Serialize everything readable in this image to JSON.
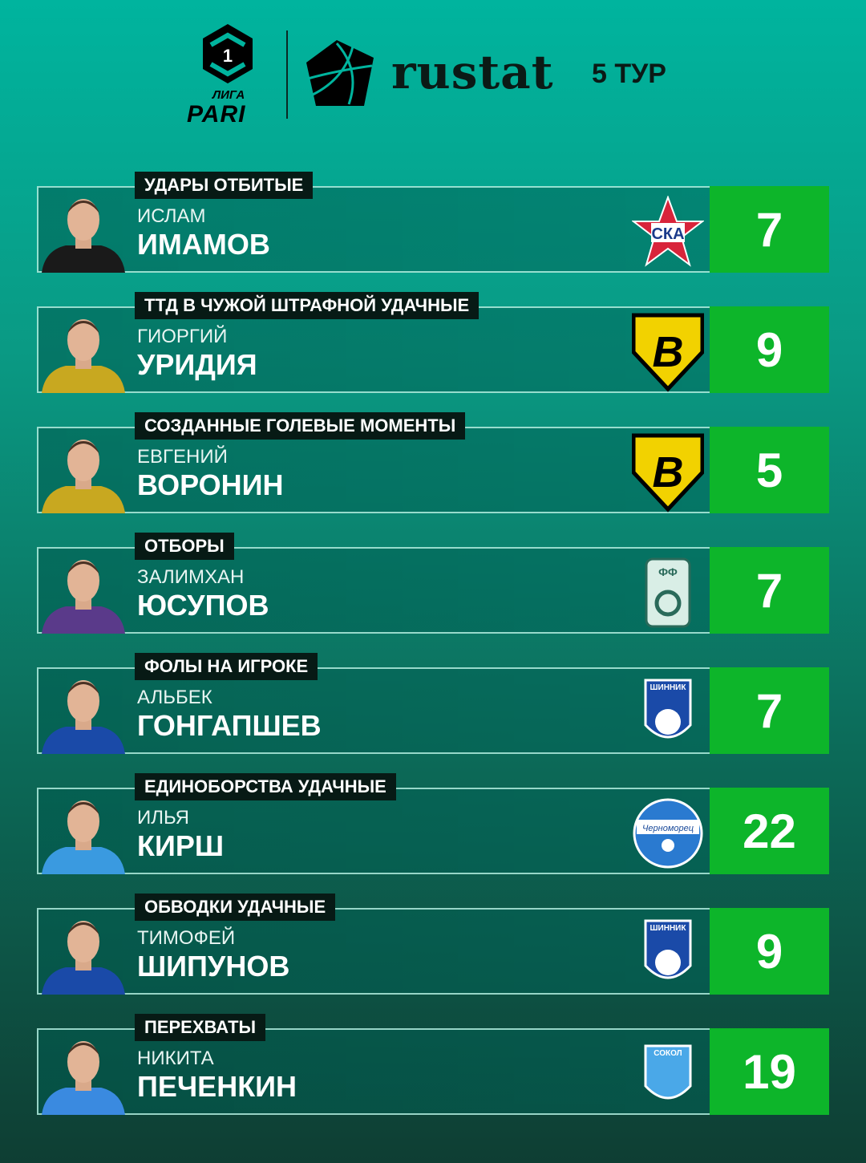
{
  "header": {
    "league_top": "ЛИГА",
    "league_bottom": "PARI",
    "league_number": "1",
    "brand": "rustat",
    "round": "5 ТУР"
  },
  "colors": {
    "value_bg": "#0db52a",
    "tab_bg": "#071a15"
  },
  "rows": [
    {
      "category": "УДАРЫ ОТБИТЫЕ",
      "first_name": "ИСЛАМ",
      "last_name": "ИМАМОВ",
      "value": "7",
      "club_logo": "ska-khabarovsk-logo",
      "logo_text": "СКА",
      "kit": "#1a1a1a"
    },
    {
      "category": "ТТД В ЧУЖОЙ ШТРАФНОЙ УДАЧНЫЕ",
      "first_name": "ГИОРГИЙ",
      "last_name": "УРИДИЯ",
      "value": "9",
      "club_logo": "volga-ulyanovsk-logo",
      "logo_text": "B",
      "kit": "#c8a820"
    },
    {
      "category": "СОЗДАННЫЕ ГОЛЕВЫЕ МОМЕНТЫ",
      "first_name": "ЕВГЕНИЙ",
      "last_name": "ВОРОНИН",
      "value": "5",
      "club_logo": "volga-ulyanovsk-logo",
      "logo_text": "B",
      "kit": "#c8a820"
    },
    {
      "category": "ОТБОРЫ",
      "first_name": "ЗАЛИМХАН",
      "last_name": "ЮСУПОВ",
      "value": "7",
      "club_logo": "ufa-logo",
      "logo_text": "ФФ",
      "kit": "#5a3a8a"
    },
    {
      "category": "ФОЛЫ НА ИГРОКЕ",
      "first_name": "АЛЬБЕК",
      "last_name": "ГОНГАПШЕВ",
      "value": "7",
      "club_logo": "shinnik-logo",
      "logo_text": "ШИННИК",
      "kit": "#1a4aa8"
    },
    {
      "category": "ЕДИНОБОРСТВА УДАЧНЫЕ",
      "first_name": "ИЛЬЯ",
      "last_name": "КИРШ",
      "value": "22",
      "club_logo": "chernomorets-logo",
      "logo_text": "Черноморец",
      "kit": "#3a9ae0"
    },
    {
      "category": "ОБВОДКИ УДАЧНЫЕ",
      "first_name": "ТИМОФЕЙ",
      "last_name": "ШИПУНОВ",
      "value": "9",
      "club_logo": "shinnik-logo",
      "logo_text": "ШИННИК",
      "kit": "#1a4aa8"
    },
    {
      "category": "ПЕРЕХВАТЫ",
      "first_name": "НИКИТА",
      "last_name": "ПЕЧЕНКИН",
      "value": "19",
      "club_logo": "sokol-saratov-logo",
      "logo_text": "СОКОЛ",
      "kit": "#3a8ae0"
    }
  ]
}
